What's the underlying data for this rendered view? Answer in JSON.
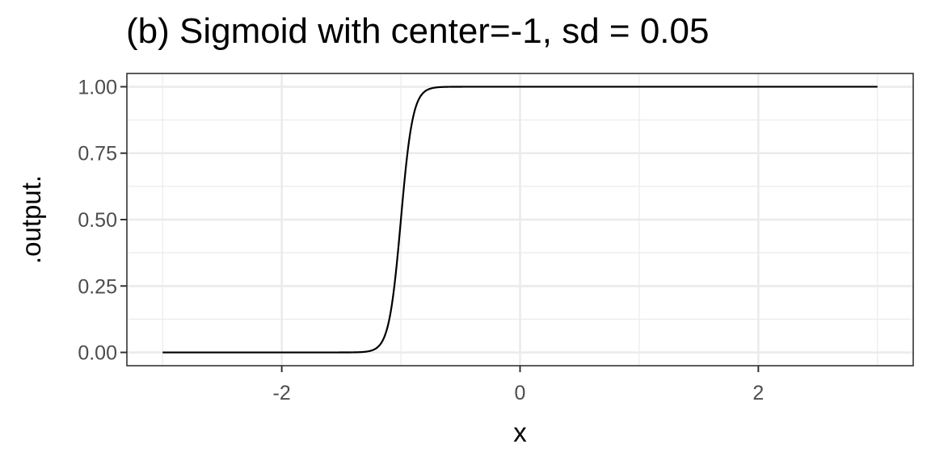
{
  "chart_data": {
    "type": "line",
    "title": "(b) Sigmoid with center=-1, sd = 0.05",
    "xlabel": "x",
    "ylabel": ".output.",
    "xlim": [
      -3.3,
      3.3
    ],
    "ylim": [
      -0.05,
      1.05
    ],
    "x_ticks": [
      -2,
      0,
      2
    ],
    "x_tick_labels": [
      "-2",
      "0",
      "2"
    ],
    "y_ticks": [
      0,
      0.25,
      0.5,
      0.75,
      1
    ],
    "y_tick_labels": [
      "0.00",
      "0.25",
      "0.50",
      "0.75",
      "1.00"
    ],
    "x_minor": [
      -3,
      -1,
      1,
      3
    ],
    "y_minor": [
      0.125,
      0.375,
      0.625,
      0.875
    ],
    "grid": true,
    "series": [
      {
        "name": "sigmoid",
        "function": "1 / (1 + exp(-(x - center) / sd))",
        "center": -1,
        "sd": 0.05,
        "x_range": [
          -3,
          3
        ],
        "color": "#000000"
      }
    ]
  }
}
